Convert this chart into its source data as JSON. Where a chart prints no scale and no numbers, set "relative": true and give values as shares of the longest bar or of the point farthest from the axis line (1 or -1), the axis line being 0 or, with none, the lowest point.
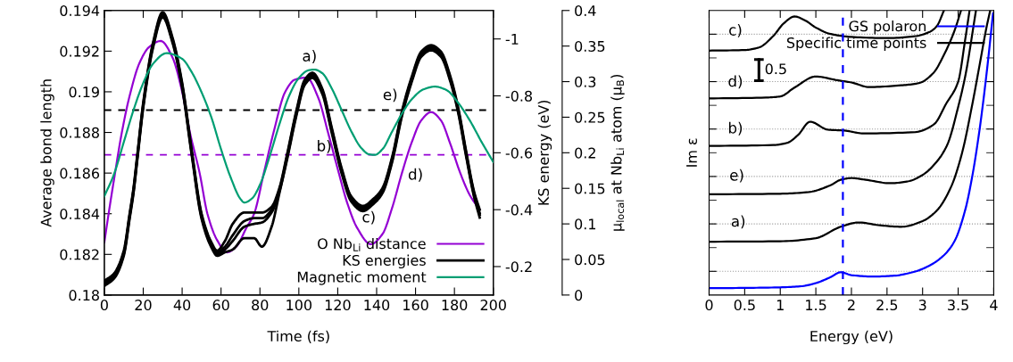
{
  "chart_data": [
    {
      "type": "line",
      "xlabel": "Time (fs)",
      "ylabel": "Average bond length",
      "y2label": "KS energy (eV)",
      "y3label": "μ$_{local}$ at Nb$_{Li}$ atom (μ$_{B}$)",
      "xlim": [
        0,
        200
      ],
      "xticks": [
        0,
        20,
        40,
        60,
        80,
        100,
        120,
        140,
        160,
        180,
        200
      ],
      "ylim": [
        0.18,
        0.194
      ],
      "yticks": [
        0.18,
        0.182,
        0.184,
        0.186,
        0.188,
        0.19,
        0.192,
        0.194
      ],
      "y2lim": [
        -0.1,
        -1.1
      ],
      "y2ticks": [
        -0.2,
        -0.4,
        -0.6,
        -0.8,
        -1
      ],
      "y3lim": [
        0,
        0.4
      ],
      "y3ticks": [
        0,
        0.05,
        0.1,
        0.15,
        0.2,
        0.25,
        0.3,
        0.35,
        0.4
      ],
      "legend": "bottom right",
      "series": [
        {
          "name": "O Nb$_{Li}$ distance",
          "color": "#9400d3",
          "axis": "y",
          "x": [
            0,
            3,
            5,
            9,
            13,
            18,
            23,
            29,
            35,
            40,
            44,
            49,
            53,
            58,
            63,
            68,
            73,
            77,
            82,
            87,
            93,
            98,
            104,
            110,
            115,
            120,
            125,
            130,
            137,
            143,
            148,
            153,
            158,
            163,
            168,
            173,
            178,
            183,
            188,
            193
          ],
          "values": [
            0.1826,
            0.1845,
            0.1857,
            0.188,
            0.1898,
            0.1914,
            0.1922,
            0.1925,
            0.1917,
            0.19,
            0.188,
            0.186,
            0.184,
            0.1827,
            0.1821,
            0.1824,
            0.1833,
            0.184,
            0.186,
            0.188,
            0.19,
            0.1906,
            0.1907,
            0.1897,
            0.188,
            0.1862,
            0.1845,
            0.1833,
            0.1825,
            0.183,
            0.1843,
            0.186,
            0.1875,
            0.1886,
            0.189,
            0.1886,
            0.1874,
            0.186,
            0.1849,
            0.1842
          ]
        },
        {
          "name": "KS energies",
          "color": "#000000",
          "axis": "y2",
          "x": [
            0,
            5,
            10,
            13,
            15,
            17,
            20,
            25,
            30,
            35,
            40,
            45,
            50,
            55,
            58,
            62,
            66,
            72,
            77,
            81,
            86,
            90,
            94,
            99,
            103,
            107,
            112,
            117,
            122,
            127,
            133,
            138,
            143,
            148,
            153,
            158,
            163,
            168,
            173,
            178,
            182,
            186,
            190,
            193
          ],
          "values": [
            -0.15,
            -0.176,
            -0.256,
            -0.386,
            -0.476,
            -0.596,
            -0.776,
            -0.986,
            -1.094,
            -1.006,
            -0.846,
            -0.606,
            -0.386,
            -0.286,
            -0.256,
            -0.29,
            -0.35,
            -0.39,
            -0.39,
            -0.39,
            -0.41,
            -0.476,
            -0.596,
            -0.756,
            -0.856,
            -0.881,
            -0.826,
            -0.686,
            -0.546,
            -0.446,
            -0.413,
            -0.436,
            -0.476,
            -0.586,
            -0.746,
            -0.866,
            -0.956,
            -0.978,
            -0.956,
            -0.866,
            -0.756,
            -0.606,
            -0.466,
            -0.4
          ]
        },
        {
          "color": "#000000",
          "axis": "y2",
          "x": [
            0,
            5,
            10,
            13,
            15,
            17,
            20,
            25,
            30,
            35,
            40,
            45,
            50,
            55,
            58,
            62,
            66,
            72,
            77,
            81,
            86,
            90,
            94,
            99,
            103,
            107,
            112,
            117,
            122,
            127,
            133,
            138,
            143,
            148,
            153,
            158,
            163,
            168,
            173,
            178,
            182,
            186,
            190,
            193
          ],
          "values": [
            -0.145,
            -0.17,
            -0.25,
            -0.38,
            -0.47,
            -0.59,
            -0.77,
            -0.98,
            -1.088,
            -1.0,
            -0.84,
            -0.6,
            -0.38,
            -0.28,
            -0.25,
            -0.27,
            -0.31,
            -0.36,
            -0.37,
            -0.37,
            -0.4,
            -0.47,
            -0.59,
            -0.75,
            -0.85,
            -0.875,
            -0.82,
            -0.68,
            -0.54,
            -0.44,
            -0.407,
            -0.43,
            -0.47,
            -0.58,
            -0.74,
            -0.86,
            -0.95,
            -0.972,
            -0.95,
            -0.86,
            -0.75,
            -0.6,
            -0.46,
            -0.388
          ]
        },
        {
          "color": "#000000",
          "axis": "y2",
          "x": [
            0,
            5,
            10,
            13,
            15,
            17,
            20,
            25,
            30,
            35,
            40,
            45,
            50,
            55,
            58,
            62,
            66,
            72,
            77,
            81,
            86,
            90,
            94,
            99,
            103,
            107,
            112,
            117,
            122,
            127,
            133,
            138,
            143,
            148,
            153,
            158,
            163,
            168,
            173,
            178,
            182,
            186,
            190,
            193
          ],
          "values": [
            -0.138,
            -0.164,
            -0.244,
            -0.374,
            -0.464,
            -0.584,
            -0.764,
            -0.974,
            -1.082,
            -0.994,
            -0.834,
            -0.594,
            -0.374,
            -0.274,
            -0.244,
            -0.26,
            -0.29,
            -0.34,
            -0.35,
            -0.355,
            -0.39,
            -0.464,
            -0.584,
            -0.744,
            -0.844,
            -0.869,
            -0.814,
            -0.674,
            -0.534,
            -0.434,
            -0.401,
            -0.424,
            -0.464,
            -0.574,
            -0.734,
            -0.854,
            -0.944,
            -0.966,
            -0.944,
            -0.854,
            -0.744,
            -0.594,
            -0.454,
            -0.382
          ]
        },
        {
          "color": "#000000",
          "axis": "y2",
          "x": [
            0,
            5,
            10,
            13,
            15,
            17,
            20,
            25,
            30,
            35,
            40,
            45,
            50,
            55,
            58,
            62,
            66,
            72,
            77,
            81,
            86,
            90,
            94,
            99,
            103,
            107,
            112,
            117,
            122,
            127,
            133,
            138,
            143,
            148,
            153,
            158,
            163,
            168,
            173,
            178,
            182,
            186,
            190,
            193
          ],
          "values": [
            -0.132,
            -0.158,
            -0.238,
            -0.368,
            -0.458,
            -0.578,
            -0.758,
            -0.968,
            -1.076,
            -0.988,
            -0.828,
            -0.588,
            -0.368,
            -0.268,
            -0.238,
            -0.25,
            -0.26,
            -0.3,
            -0.3,
            -0.27,
            -0.34,
            -0.458,
            -0.578,
            -0.738,
            -0.838,
            -0.863,
            -0.808,
            -0.668,
            -0.528,
            -0.428,
            -0.395,
            -0.418,
            -0.458,
            -0.568,
            -0.728,
            -0.848,
            -0.938,
            -0.96,
            -0.938,
            -0.848,
            -0.738,
            -0.588,
            -0.448,
            -0.372
          ]
        },
        {
          "name": "Magnetic moment",
          "color": "#009e73",
          "axis": "y3",
          "x": [
            0,
            5,
            10,
            15,
            20,
            25,
            32,
            40,
            45,
            50,
            55,
            60,
            65,
            70,
            72,
            76,
            80,
            85,
            90,
            95,
            100,
            105,
            108,
            112,
            117,
            122,
            127,
            132,
            136,
            139,
            143,
            148,
            153,
            158,
            164,
            170,
            176,
            182,
            188,
            194,
            200
          ],
          "values": [
            0.139,
            0.17,
            0.215,
            0.26,
            0.298,
            0.325,
            0.34,
            0.332,
            0.313,
            0.285,
            0.25,
            0.205,
            0.165,
            0.135,
            0.13,
            0.136,
            0.155,
            0.195,
            0.24,
            0.28,
            0.305,
            0.316,
            0.317,
            0.312,
            0.29,
            0.26,
            0.23,
            0.207,
            0.198,
            0.197,
            0.205,
            0.23,
            0.255,
            0.275,
            0.289,
            0.293,
            0.288,
            0.27,
            0.245,
            0.215,
            0.187
          ]
        }
      ],
      "ref_lines": [
        {
          "axis": "y2",
          "value": -0.75,
          "color": "#000000",
          "line_style": "dashed"
        },
        {
          "axis": "y",
          "value": 0.1869,
          "color": "#9400d3",
          "line_style": "dashed"
        }
      ],
      "annotations": [
        "a)",
        "b)",
        "c)",
        "d)",
        "e)"
      ]
    },
    {
      "type": "line",
      "relative": true,
      "xlabel": "Energy (eV)",
      "ylabel": "Im ε",
      "tick_labels": "x",
      "grid": "y",
      "xlim": [
        0,
        4
      ],
      "xticks": [
        0,
        0.5,
        1,
        1.5,
        2,
        2.5,
        3,
        3.5,
        4
      ],
      "legend": "top right",
      "series": [
        {
          "name": "GS polaron",
          "color": "#0000ff",
          "x": [
            0,
            0.5,
            1.0,
            1.3,
            1.5,
            1.7,
            1.85,
            2.0,
            2.3,
            2.6,
            2.9,
            3.1,
            3.3,
            3.45,
            3.6,
            3.7,
            3.8,
            3.9,
            3.99
          ],
          "values": [
            0.024,
            0.025,
            0.027,
            0.031,
            0.042,
            0.062,
            0.08,
            0.07,
            0.065,
            0.068,
            0.083,
            0.104,
            0.14,
            0.19,
            0.3,
            0.42,
            0.58,
            0.78,
            0.99
          ]
        },
        {
          "name": "Specific time points",
          "color": "#000000",
          "x": [
            0,
            1.0,
            1.5,
            1.85,
            2.1,
            2.4,
            2.7,
            3.0,
            3.2,
            3.4,
            3.55,
            3.7,
            3.8,
            3.9,
            3.95
          ],
          "values": [
            0.1875,
            0.189,
            0.2,
            0.24,
            0.255,
            0.245,
            0.24,
            0.26,
            0.297,
            0.38,
            0.495,
            0.672,
            0.807,
            0.943,
            1.0
          ]
        },
        {
          "color": "#000000",
          "x": [
            0,
            1.0,
            1.4,
            1.7,
            1.85,
            2.0,
            2.2,
            2.55,
            2.8,
            3.0,
            3.2,
            3.35,
            3.5,
            3.6,
            3.75
          ],
          "values": [
            0.354,
            0.356,
            0.362,
            0.385,
            0.405,
            0.411,
            0.405,
            0.393,
            0.4,
            0.422,
            0.469,
            0.53,
            0.661,
            0.77,
            1.0
          ]
        },
        {
          "color": "#000000",
          "x": [
            0,
            0.9,
            1.1,
            1.25,
            1.42,
            1.67,
            1.9,
            2.17,
            2.9,
            3.16,
            3.33,
            3.5,
            3.6,
            3.66
          ],
          "values": [
            0.524,
            0.527,
            0.535,
            0.5625,
            0.609,
            0.581,
            0.578,
            0.568,
            0.573,
            0.6,
            0.672,
            0.75,
            0.9,
            1.0
          ]
        },
        {
          "color": "#000000",
          "x": [
            0,
            0.8,
            1.0,
            1.2,
            1.5,
            1.8,
            2.0,
            2.25,
            2.7,
            2.95,
            3.15,
            3.3,
            3.45,
            3.54
          ],
          "values": [
            0.691,
            0.694,
            0.698,
            0.729,
            0.768,
            0.755,
            0.747,
            0.731,
            0.737,
            0.745,
            0.78,
            0.844,
            0.93,
            1.0
          ]
        },
        {
          "color": "#000000",
          "x": [
            0,
            0.5,
            0.7,
            0.9,
            1.05,
            1.2,
            1.35,
            1.5,
            1.7,
            2.0,
            2.5,
            2.9,
            3.1,
            3.2,
            3.3
          ],
          "values": [
            0.859,
            0.861,
            0.87,
            0.91,
            0.955,
            0.979,
            0.965,
            0.94,
            0.918,
            0.907,
            0.903,
            0.91,
            0.925,
            0.945,
            1.0
          ]
        }
      ],
      "ref_lines": [
        {
          "axis": "x",
          "value": 1.88,
          "color": "#0000ff",
          "line_style": "dashed"
        }
      ],
      "annotations": [
        "c)",
        "d)",
        "b)",
        "e)",
        "a)",
        "0.5"
      ]
    }
  ]
}
